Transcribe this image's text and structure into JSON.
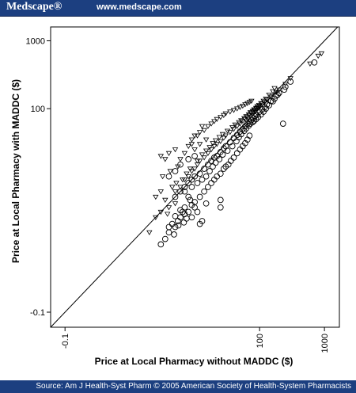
{
  "header": {
    "logo_text": "Medscape®",
    "site_url": "www.medscape.com"
  },
  "footer": {
    "source": "Source: Am J Health-Syst Pharm © 2005 American Society of Health-System Pharmacists"
  },
  "chart_data": {
    "type": "scatter",
    "title": "",
    "xlabel": "Price at Local Pharmacy without MADDC ($)",
    "ylabel": "Price at Local Pharmacy with MADDC ($)",
    "x_scale": "log",
    "y_scale": "log",
    "xlim": [
      0.06,
      1700
    ],
    "ylim": [
      0.06,
      1600
    ],
    "x_ticks": [
      {
        "value": 0.1,
        "label": "-0.1"
      },
      {
        "value": 100,
        "label": "100"
      },
      {
        "value": 1000,
        "label": "1000"
      }
    ],
    "y_ticks": [
      {
        "value": 0.1,
        "label": "-0.1"
      },
      {
        "value": 100,
        "label": "100"
      },
      {
        "value": 1000,
        "label": "1000"
      }
    ],
    "reference_line": "y = x",
    "legend": "none",
    "series": [
      {
        "marker": "circle",
        "points": [
          [
            5,
            5
          ],
          [
            6,
            6
          ],
          [
            7,
            7
          ],
          [
            8,
            8
          ],
          [
            9,
            9
          ],
          [
            10,
            10
          ],
          [
            12,
            11
          ],
          [
            14,
            13
          ],
          [
            16,
            15
          ],
          [
            18,
            17
          ],
          [
            20,
            19
          ],
          [
            22,
            20
          ],
          [
            25,
            23
          ],
          [
            28,
            26
          ],
          [
            30,
            28
          ],
          [
            35,
            32
          ],
          [
            40,
            37
          ],
          [
            45,
            41
          ],
          [
            50,
            46
          ],
          [
            55,
            50
          ],
          [
            60,
            55
          ],
          [
            65,
            60
          ],
          [
            70,
            64
          ],
          [
            75,
            68
          ],
          [
            80,
            72
          ],
          [
            85,
            77
          ],
          [
            90,
            81
          ],
          [
            100,
            90
          ],
          [
            110,
            98
          ],
          [
            120,
            105
          ],
          [
            130,
            115
          ],
          [
            150,
            130
          ],
          [
            180,
            155
          ],
          [
            200,
            170
          ],
          [
            250,
            210
          ],
          [
            300,
            250
          ],
          [
            700,
            480
          ],
          [
            4,
            1.5
          ],
          [
            4.5,
            2
          ],
          [
            5,
            1.8
          ],
          [
            5.5,
            2.2
          ],
          [
            6,
            2.5
          ],
          [
            6.5,
            3
          ],
          [
            7,
            2.8
          ],
          [
            3.5,
            1.2
          ],
          [
            4,
            1.8
          ],
          [
            5,
            2.6
          ],
          [
            6,
            3.2
          ],
          [
            7,
            3.5
          ],
          [
            8,
            3
          ],
          [
            9,
            3.8
          ],
          [
            10,
            4.2
          ],
          [
            3,
            1.0
          ],
          [
            4.8,
            1.4
          ],
          [
            5.6,
            1.9
          ],
          [
            6.8,
            2.1
          ],
          [
            7.5,
            2.4
          ],
          [
            8.5,
            4.5
          ],
          [
            12,
            5
          ],
          [
            14,
            6
          ],
          [
            16,
            7
          ],
          [
            18,
            8
          ],
          [
            20,
            9
          ],
          [
            22,
            10
          ],
          [
            25,
            11
          ],
          [
            28,
            13
          ],
          [
            30,
            14
          ],
          [
            33,
            15
          ],
          [
            36,
            17
          ],
          [
            40,
            19
          ],
          [
            45,
            22
          ],
          [
            50,
            25
          ],
          [
            55,
            28
          ],
          [
            60,
            31
          ],
          [
            65,
            35
          ],
          [
            70,
            40
          ],
          [
            12,
            2.0
          ],
          [
            13,
            2.2
          ],
          [
            11,
            3.0
          ],
          [
            15,
            4
          ],
          [
            9,
            2.5
          ],
          [
            10,
            3.5
          ],
          [
            8,
            5
          ],
          [
            7,
            6
          ],
          [
            9,
            7
          ],
          [
            11,
            8
          ],
          [
            13,
            9
          ],
          [
            15,
            10
          ],
          [
            17,
            12
          ],
          [
            19,
            14
          ],
          [
            21,
            16
          ],
          [
            24,
            18
          ],
          [
            27,
            21
          ],
          [
            32,
            24
          ],
          [
            38,
            28
          ],
          [
            44,
            33
          ],
          [
            48,
            38
          ],
          [
            52,
            42
          ],
          [
            58,
            47
          ],
          [
            62,
            51
          ],
          [
            68,
            56
          ],
          [
            72,
            60
          ],
          [
            78,
            63
          ],
          [
            82,
            66
          ],
          [
            88,
            70
          ],
          [
            95,
            75
          ],
          [
            105,
            82
          ],
          [
            115,
            90
          ],
          [
            125,
            100
          ],
          [
            140,
            112
          ],
          [
            160,
            128
          ],
          [
            170,
            140
          ],
          [
            190,
            160
          ],
          [
            230,
            60
          ],
          [
            240,
            190
          ],
          [
            25,
            3.5
          ],
          [
            25,
            4.5
          ],
          [
            6,
            15
          ],
          [
            8,
            18
          ],
          [
            10,
            20
          ],
          [
            4,
            10
          ],
          [
            5,
            12
          ]
        ]
      },
      {
        "marker": "triangle-down",
        "points": [
          [
            5,
            6
          ],
          [
            6,
            7
          ],
          [
            7,
            9
          ],
          [
            8,
            10
          ],
          [
            9,
            12
          ],
          [
            10,
            13
          ],
          [
            11,
            15
          ],
          [
            12,
            17
          ],
          [
            14,
            19
          ],
          [
            16,
            22
          ],
          [
            18,
            25
          ],
          [
            20,
            28
          ],
          [
            22,
            30
          ],
          [
            25,
            33
          ],
          [
            28,
            37
          ],
          [
            30,
            40
          ],
          [
            35,
            45
          ],
          [
            40,
            50
          ],
          [
            45,
            55
          ],
          [
            50,
            60
          ],
          [
            55,
            66
          ],
          [
            60,
            70
          ],
          [
            65,
            75
          ],
          [
            70,
            80
          ],
          [
            75,
            86
          ],
          [
            80,
            90
          ],
          [
            85,
            95
          ],
          [
            90,
            100
          ],
          [
            95,
            105
          ],
          [
            100,
            110
          ],
          [
            110,
            118
          ],
          [
            120,
            125
          ],
          [
            130,
            135
          ],
          [
            150,
            150
          ],
          [
            180,
            175
          ],
          [
            200,
            190
          ],
          [
            250,
            230
          ],
          [
            300,
            280
          ],
          [
            600,
            460
          ],
          [
            800,
            600
          ],
          [
            900,
            650
          ],
          [
            3,
            20
          ],
          [
            3.5,
            18
          ],
          [
            4,
            22
          ],
          [
            5,
            25
          ],
          [
            3.2,
            10
          ],
          [
            4.2,
            12
          ],
          [
            5.5,
            14
          ],
          [
            6,
            18
          ],
          [
            7,
            22
          ],
          [
            8,
            28
          ],
          [
            9,
            35
          ],
          [
            10,
            40
          ],
          [
            12,
            45
          ],
          [
            14,
            48
          ],
          [
            16,
            55
          ],
          [
            18,
            60
          ],
          [
            20,
            65
          ],
          [
            22,
            70
          ],
          [
            25,
            75
          ],
          [
            28,
            80
          ],
          [
            30,
            85
          ],
          [
            35,
            90
          ],
          [
            40,
            95
          ],
          [
            45,
            100
          ],
          [
            50,
            105
          ],
          [
            55,
            110
          ],
          [
            60,
            115
          ],
          [
            65,
            120
          ],
          [
            70,
            125
          ],
          [
            75,
            130
          ],
          [
            2.5,
            5
          ],
          [
            3,
            6
          ],
          [
            3.5,
            4.5
          ],
          [
            4.5,
            7
          ],
          [
            5.2,
            8
          ],
          [
            6.5,
            9
          ],
          [
            7.5,
            11
          ],
          [
            8.5,
            13
          ],
          [
            11,
            17
          ],
          [
            13,
            21
          ],
          [
            15,
            24
          ],
          [
            17,
            27
          ],
          [
            19,
            31
          ],
          [
            21,
            34
          ],
          [
            24,
            38
          ],
          [
            27,
            42
          ],
          [
            32,
            47
          ],
          [
            38,
            53
          ],
          [
            42,
            58
          ],
          [
            48,
            63
          ],
          [
            52,
            67
          ],
          [
            58,
            72
          ],
          [
            62,
            77
          ],
          [
            68,
            82
          ],
          [
            72,
            88
          ],
          [
            78,
            92
          ],
          [
            82,
            97
          ],
          [
            88,
            102
          ],
          [
            92,
            108
          ],
          [
            98,
            113
          ],
          [
            105,
            120
          ],
          [
            115,
            130
          ],
          [
            125,
            140
          ],
          [
            140,
            160
          ],
          [
            160,
            180
          ],
          [
            170,
            200
          ],
          [
            3,
            3
          ],
          [
            4,
            3.5
          ],
          [
            5,
            4
          ],
          [
            2,
            1.5
          ],
          [
            2.5,
            2.5
          ],
          [
            3.8,
            2.8
          ],
          [
            10,
            25
          ],
          [
            12,
            30
          ],
          [
            9,
            30
          ],
          [
            15,
            35
          ],
          [
            11,
            40
          ],
          [
            13,
            55
          ]
        ]
      }
    ]
  }
}
